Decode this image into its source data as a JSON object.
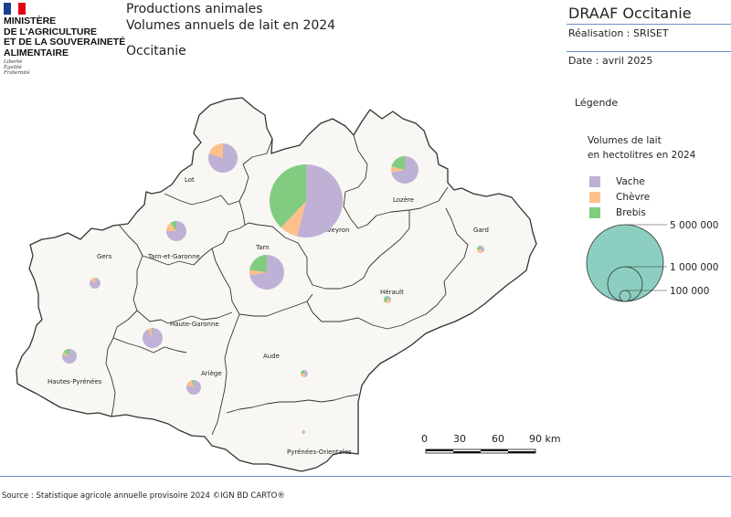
{
  "logo": {
    "lines": [
      "MINISTÈRE",
      "DE L'AGRICULTURE",
      "ET DE LA SOUVERAINETÉ",
      "ALIMENTAIRE"
    ],
    "motto": [
      "Liberté",
      "Égalité",
      "Fraternité"
    ]
  },
  "header": {
    "title_1": "Productions animales",
    "title_2": "Volumes annuels de lait en 2024",
    "region": "Occitanie",
    "org": "DRAAF Occitanie",
    "realisation": "Réalisation : SRISET",
    "date": "Date : avril 2025"
  },
  "legend": {
    "heading": "Légende",
    "subtitle_1": "Volumes de lait",
    "subtitle_2": "en hectolitres en 2024",
    "items": [
      {
        "label": "Vache",
        "color": "#bfb1d5"
      },
      {
        "label": "Chèvre",
        "color": "#fdc08a"
      },
      {
        "label": "Brebis",
        "color": "#81cc81"
      }
    ],
    "sizes": [
      "5 000 000",
      "1 000 000",
      "100 000"
    ],
    "size_color": "#8ccfc0"
  },
  "scale": {
    "ticks": [
      "0",
      "30",
      "60",
      "90 km"
    ]
  },
  "departments": [
    {
      "name": "Lot",
      "shares": [
        0.8,
        0.2,
        0.0
      ]
    },
    {
      "name": "Lozère",
      "shares": [
        0.72,
        0.07,
        0.21
      ]
    },
    {
      "name": "Aveyron",
      "shares": [
        0.54,
        0.08,
        0.38
      ]
    },
    {
      "name": "Gard",
      "shares": [
        0.4,
        0.35,
        0.25
      ]
    },
    {
      "name": "Gers",
      "shares": [
        0.85,
        0.15,
        0.0
      ]
    },
    {
      "name": "Tarn-et-Garonne",
      "shares": [
        0.75,
        0.15,
        0.1
      ]
    },
    {
      "name": "Tarn",
      "shares": [
        0.72,
        0.05,
        0.23
      ]
    },
    {
      "name": "Hérault",
      "shares": [
        0.3,
        0.3,
        0.4
      ]
    },
    {
      "name": "Haute-Garonne",
      "shares": [
        0.92,
        0.06,
        0.02
      ]
    },
    {
      "name": "Hautes-Pyrénées",
      "shares": [
        0.8,
        0.05,
        0.15
      ]
    },
    {
      "name": "Aude",
      "shares": [
        0.45,
        0.3,
        0.25
      ]
    },
    {
      "name": "Ariège",
      "shares": [
        0.8,
        0.15,
        0.05
      ]
    },
    {
      "name": "Pyrénées-Orientales",
      "shares": [
        0.6,
        0.4,
        0.0
      ]
    }
  ],
  "footer": {
    "source": "Source : Statistique agricole annuelle provisoire 2024 ©IGN BD CARTO®"
  }
}
